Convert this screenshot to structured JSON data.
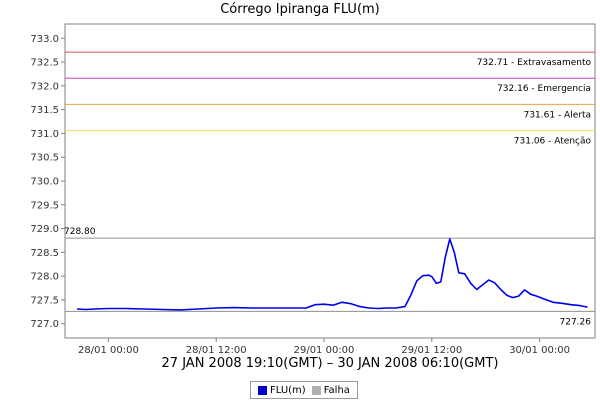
{
  "chart_data": {
    "type": "line",
    "title": "Córrego Ipiranga FLU(m)",
    "subtitle": "27 JAN 2008 19:10(GMT) – 30 JAN 2008 06:10(GMT)",
    "ylim": [
      726.7,
      733.3
    ],
    "y_ticks": [
      "727.0",
      "727.5",
      "728.0",
      "728.5",
      "729.0",
      "729.5",
      "730.0",
      "730.5",
      "731.0",
      "731.5",
      "732.0",
      "732.5",
      "733.0"
    ],
    "xlim": [
      "2008-01-27T19:10",
      "2008-01-30T06:10"
    ],
    "x_ticks": [
      {
        "label": "28/01 00:00",
        "time": "2008-01-28T00:00"
      },
      {
        "label": "28/01 12:00",
        "time": "2008-01-28T12:00"
      },
      {
        "label": "29/01 00:00",
        "time": "2008-01-29T00:00"
      },
      {
        "label": "29/01 12:00",
        "time": "2008-01-29T12:00"
      },
      {
        "label": "30/01 00:00",
        "time": "2008-01-30T00:00"
      }
    ],
    "thresholds": [
      {
        "value": 732.71,
        "label": "732.71 - Extravasamento",
        "color": "#c8584a"
      },
      {
        "value": 732.16,
        "label": "732.16 - Emergencia",
        "color": "#cc44cc"
      },
      {
        "value": 731.61,
        "label": "731.61 - Alerta",
        "color": "#f0a040"
      },
      {
        "value": 731.06,
        "label": "731.06 - Atenção",
        "color": "#f0e060"
      }
    ],
    "reference_lines": [
      {
        "value": 728.8,
        "label": "728.80",
        "color": "#909090"
      },
      {
        "value": 727.26,
        "label": "727.26",
        "color": "#909090"
      }
    ],
    "series": [
      {
        "name": "FLU(m)",
        "color": "#0000ee",
        "points": [
          [
            "2008-01-27T20:30",
            727.31
          ],
          [
            "2008-01-27T21:30",
            727.3
          ],
          [
            "2008-01-27T22:30",
            727.31
          ],
          [
            "2008-01-28T00:00",
            727.32
          ],
          [
            "2008-01-28T02:00",
            727.32
          ],
          [
            "2008-01-28T04:00",
            727.31
          ],
          [
            "2008-01-28T06:00",
            727.3
          ],
          [
            "2008-01-28T08:00",
            727.29
          ],
          [
            "2008-01-28T10:00",
            727.31
          ],
          [
            "2008-01-28T12:00",
            727.33
          ],
          [
            "2008-01-28T14:00",
            727.34
          ],
          [
            "2008-01-28T16:00",
            727.33
          ],
          [
            "2008-01-28T18:00",
            727.33
          ],
          [
            "2008-01-28T20:00",
            727.33
          ],
          [
            "2008-01-28T22:00",
            727.33
          ],
          [
            "2008-01-28T23:00",
            727.4
          ],
          [
            "2008-01-29T00:00",
            727.41
          ],
          [
            "2008-01-29T01:00",
            727.39
          ],
          [
            "2008-01-29T02:00",
            727.45
          ],
          [
            "2008-01-29T03:00",
            727.42
          ],
          [
            "2008-01-29T04:00",
            727.36
          ],
          [
            "2008-01-29T05:00",
            727.33
          ],
          [
            "2008-01-29T06:00",
            727.32
          ],
          [
            "2008-01-29T07:00",
            727.33
          ],
          [
            "2008-01-29T08:00",
            727.33
          ],
          [
            "2008-01-29T09:00",
            727.36
          ],
          [
            "2008-01-29T09:40",
            727.6
          ],
          [
            "2008-01-29T10:20",
            727.9
          ],
          [
            "2008-01-29T11:00",
            728.01
          ],
          [
            "2008-01-29T11:40",
            728.02
          ],
          [
            "2008-01-29T12:00",
            727.99
          ],
          [
            "2008-01-29T12:30",
            727.85
          ],
          [
            "2008-01-29T13:00",
            727.88
          ],
          [
            "2008-01-29T13:30",
            728.4
          ],
          [
            "2008-01-29T14:00",
            728.78
          ],
          [
            "2008-01-29T14:30",
            728.5
          ],
          [
            "2008-01-29T15:00",
            728.07
          ],
          [
            "2008-01-29T15:40",
            728.05
          ],
          [
            "2008-01-29T16:20",
            727.85
          ],
          [
            "2008-01-29T17:00",
            727.72
          ],
          [
            "2008-01-29T17:40",
            727.82
          ],
          [
            "2008-01-29T18:20",
            727.92
          ],
          [
            "2008-01-29T19:00",
            727.86
          ],
          [
            "2008-01-29T19:40",
            727.72
          ],
          [
            "2008-01-29T20:20",
            727.6
          ],
          [
            "2008-01-29T21:00",
            727.55
          ],
          [
            "2008-01-29T21:40",
            727.58
          ],
          [
            "2008-01-29T22:20",
            727.71
          ],
          [
            "2008-01-29T23:00",
            727.62
          ],
          [
            "2008-01-29T23:40",
            727.58
          ],
          [
            "2008-01-30T00:30",
            727.52
          ],
          [
            "2008-01-30T01:30",
            727.45
          ],
          [
            "2008-01-30T02:30",
            727.43
          ],
          [
            "2008-01-30T03:30",
            727.4
          ],
          [
            "2008-01-30T04:30",
            727.38
          ],
          [
            "2008-01-30T05:20",
            727.35
          ]
        ]
      }
    ],
    "legend": [
      {
        "label": "FLU(m)",
        "color": "#0000cc"
      },
      {
        "label": "Falha",
        "color": "#b0b0b0"
      }
    ]
  }
}
